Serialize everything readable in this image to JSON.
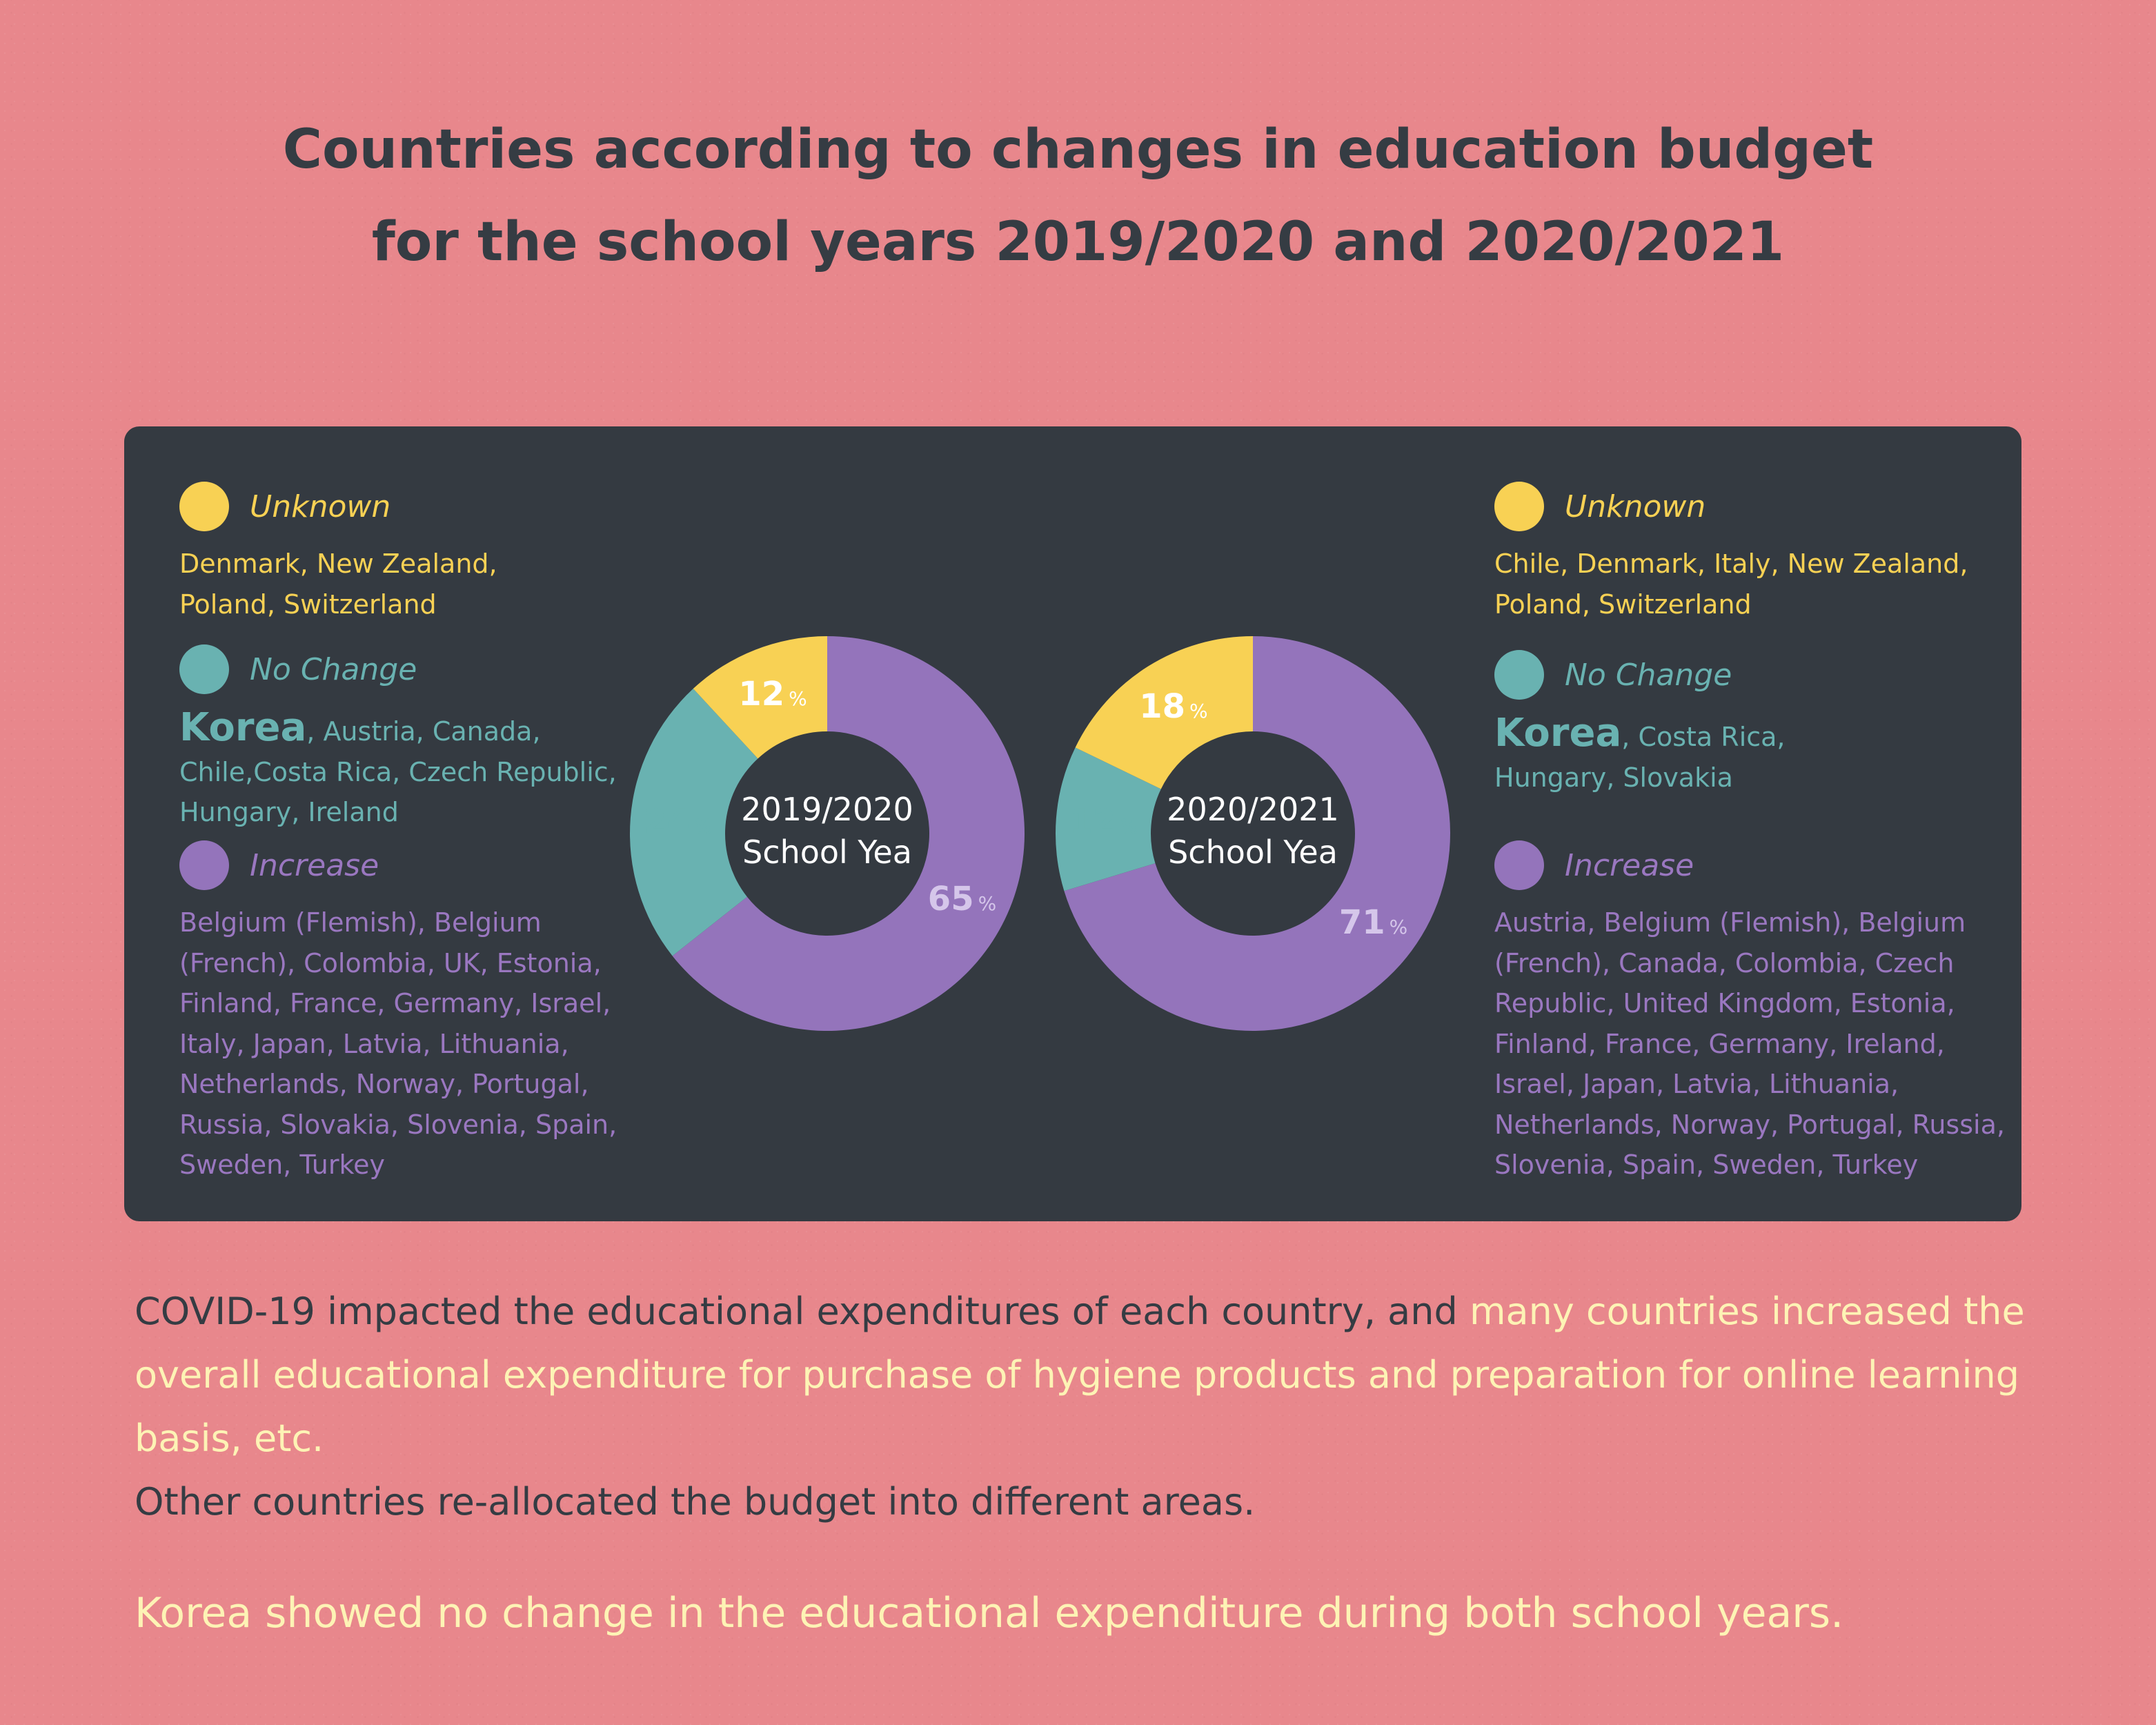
{
  "title": {
    "line1": "Countries according to changes in education budget",
    "line2": "for the school years 2019/2020 and 2020/2021"
  },
  "colors": {
    "background": "#e8878c",
    "panel": "#343a41",
    "unknown": "#f8d154",
    "no_change": "#69b2b1",
    "increase": "#9474bb"
  },
  "left": {
    "unknown": {
      "label": "Unknown",
      "countries": "Denmark, New Zealand, Poland, Switzerland"
    },
    "no_change": {
      "label": "No Change",
      "korea": "Korea",
      "countries": ", Austria, Canada, Chile,Costa Rica, Czech Republic, Hungary, Ireland"
    },
    "increase": {
      "label": "Increase",
      "countries": "Belgium (Flemish), Belgium (French), Colombia, UK, Estonia, Finland, France, Germany, Israel, Italy, Japan, Latvia, Lithuania, Netherlands, Norway, Portugal, Russia, Slovakia, Slovenia, Spain, Sweden, Turkey"
    }
  },
  "right": {
    "unknown": {
      "label": "Unknown",
      "countries": "Chile, Denmark, Italy, New Zealand, Poland, Switzerland"
    },
    "no_change": {
      "label": "No Change",
      "korea": "Korea",
      "countries": ", Costa Rica, Hungary, Slovakia"
    },
    "increase": {
      "label": "Increase",
      "countries": "Austria, Belgium (Flemish), Belgium (French), Canada, Colombia, Czech Republic, United Kingdom, Estonia, Finland, France, Germany, Ireland, Israel, Japan, Latvia, Lithuania, Netherlands, Norway, Portugal, Russia, Slovenia, Spain, Sweden, Turkey"
    }
  },
  "chart_data": [
    {
      "type": "pie",
      "title_line1": "2019/2020",
      "title_line2": "School Yea",
      "categories": [
        "Increase",
        "No Change",
        "Unknown"
      ],
      "values": [
        65,
        24,
        12
      ],
      "unit": "%"
    },
    {
      "type": "pie",
      "title_line1": "2020/2021",
      "title_line2": "School Yea",
      "categories": [
        "Increase",
        "No Change",
        "Unknown"
      ],
      "values": [
        71,
        12,
        18
      ],
      "unit": "%"
    }
  ],
  "body": {
    "p1_plain": "COVID-19 impacted the educational expenditures of each country, and ",
    "p1_highlight": "many countries increased the overall educational expenditure for purchase of hygiene products and preparation for online learning basis, etc.",
    "p2": "Other countries re-allocated the budget into different areas.",
    "closing": "Korea showed no change in the educational expenditure during both school years."
  }
}
